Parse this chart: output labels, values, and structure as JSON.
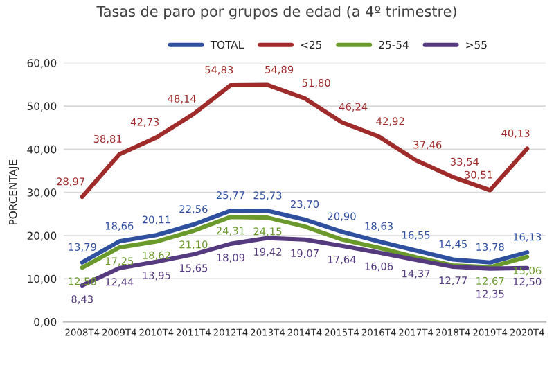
{
  "chart_data": {
    "type": "line",
    "title": "Tasas de paro por grupos de edad (a 4º trimestre)",
    "ylabel": "PORCENTAJE",
    "categories": [
      "2008T4",
      "2009T4",
      "2010T4",
      "2011T4",
      "2012T4",
      "2013T4",
      "2014T4",
      "2015T4",
      "2016T4",
      "2017T4",
      "2018T4",
      "2019T4",
      "2020T4"
    ],
    "series": [
      {
        "name": "TOTAL",
        "color": "#2f4f9f",
        "values": [
          13.79,
          18.66,
          20.11,
          22.56,
          25.77,
          25.73,
          23.7,
          20.9,
          18.63,
          16.55,
          14.45,
          13.78,
          16.13
        ],
        "value_labels": [
          "13,79",
          "18,66",
          "20,11",
          "22,56",
          "25,77",
          "25,73",
          "23,70",
          "20,90",
          "18,63",
          "16,55",
          "14,45",
          "13,78",
          "16,13"
        ]
      },
      {
        "name": "<25",
        "color": "#a02b2b",
        "values": [
          28.97,
          38.81,
          42.73,
          48.14,
          54.83,
          54.89,
          51.8,
          46.24,
          42.92,
          37.46,
          33.54,
          30.51,
          40.13
        ],
        "value_labels": [
          "28,97",
          "38,81",
          "42,73",
          "48,14",
          "54,83",
          "54,89",
          "51,80",
          "46,24",
          "42,92",
          "37,46",
          "33,54",
          "30,51",
          "40,13"
        ]
      },
      {
        "name": "25-54",
        "color": "#6b9a2c",
        "values": [
          12.58,
          17.25,
          18.62,
          21.1,
          24.31,
          24.15,
          22.1,
          19.1,
          17.2,
          15.0,
          13.1,
          12.67,
          15.06
        ],
        "value_labels": [
          "12,58",
          "17,25",
          "18,62",
          "21,10",
          "24,31",
          "24,15",
          null,
          null,
          null,
          null,
          null,
          "12,67",
          "15,06"
        ]
      },
      {
        "name": ">55",
        "color": "#553a80",
        "values": [
          8.43,
          12.44,
          13.95,
          15.65,
          18.09,
          19.42,
          19.07,
          17.64,
          16.06,
          14.37,
          12.77,
          12.35,
          12.5
        ],
        "value_labels": [
          "8,43",
          "12,44",
          "13,95",
          "15,65",
          "18,09",
          "19,42",
          "19,07",
          "17,64",
          "16,06",
          "14,37",
          "12,77",
          "12,35",
          "12,50"
        ]
      }
    ],
    "ylim": [
      0,
      60
    ],
    "yticks": [
      {
        "value": 0,
        "label": "0,00"
      },
      {
        "value": 10,
        "label": "10,00"
      },
      {
        "value": 20,
        "label": "20,00"
      },
      {
        "value": 30,
        "label": "30,00"
      },
      {
        "value": 40,
        "label": "40,00"
      },
      {
        "value": 50,
        "label": "50,00"
      },
      {
        "value": 60,
        "label": "60,00"
      }
    ],
    "grid": "y",
    "legend": "top",
    "line_style": "solid",
    "marker": "none"
  }
}
